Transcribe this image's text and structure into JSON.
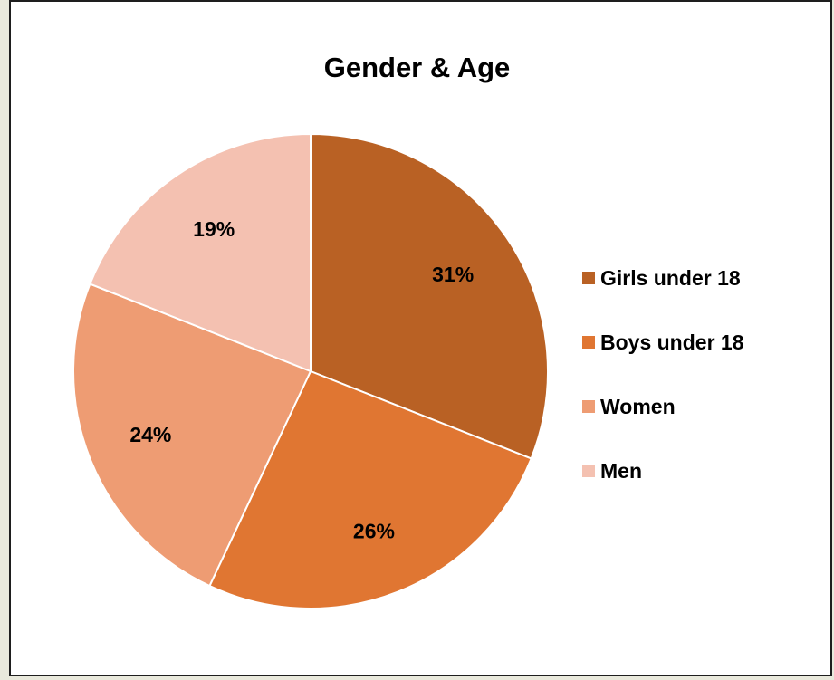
{
  "chart_data": {
    "type": "pie",
    "title": "Gender & Age",
    "categories": [
      "Girls under 18",
      "Boys under 18",
      "Women",
      "Men"
    ],
    "values": [
      31,
      26,
      24,
      19
    ],
    "data_labels": [
      "31%",
      "26%",
      "24%",
      "19%"
    ],
    "colors": [
      "#b96124",
      "#e07632",
      "#ee9c73",
      "#f4c1b1"
    ],
    "legend_position": "right",
    "start_angle": "12 o'clock",
    "direction": "clockwise"
  }
}
